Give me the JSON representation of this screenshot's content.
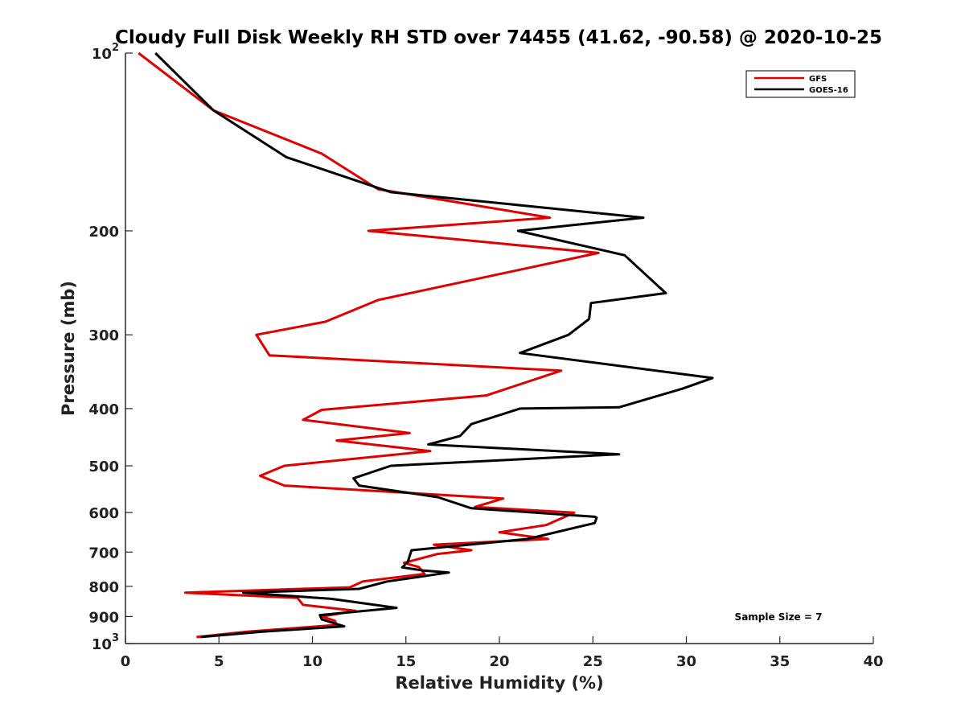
{
  "chart_data": {
    "type": "line",
    "title": "Cloudy Full Disk Weekly RH STD over 74455 (41.62, -90.58) @ 2020-10-25",
    "xlabel": "Relative Humidity (%)",
    "ylabel": "Pressure (mb)",
    "xlim": [
      0,
      40
    ],
    "ylim": [
      100,
      1000
    ],
    "y_scale": "log",
    "y_reversed": true,
    "x_ticks": [
      0,
      5,
      10,
      15,
      20,
      25,
      30,
      35,
      40
    ],
    "x_tick_labels": [
      "0",
      "5",
      "10",
      "15",
      "20",
      "25",
      "30",
      "35",
      "40"
    ],
    "y_ticks": [
      100,
      200,
      300,
      400,
      500,
      600,
      700,
      800,
      900,
      1000
    ],
    "y_tick_labels": [
      {
        "base": "10",
        "exp": "2"
      },
      {
        "base": "200",
        "exp": ""
      },
      {
        "base": "300",
        "exp": ""
      },
      {
        "base": "400",
        "exp": ""
      },
      {
        "base": "500",
        "exp": ""
      },
      {
        "base": "600",
        "exp": ""
      },
      {
        "base": "700",
        "exp": ""
      },
      {
        "base": "800",
        "exp": ""
      },
      {
        "base": "900",
        "exp": ""
      },
      {
        "base": "10",
        "exp": "3"
      }
    ],
    "grid": false,
    "legend_position": "top-right",
    "annotation": "Sample Size = 7",
    "series": [
      {
        "name": "GFS",
        "color": "#e00000",
        "points": [
          [
            0.7,
            100
          ],
          [
            4.7,
            125
          ],
          [
            10.5,
            148
          ],
          [
            13.5,
            170
          ],
          [
            22.7,
            190
          ],
          [
            13.0,
            200
          ],
          [
            25.3,
            218
          ],
          [
            13.5,
            262
          ],
          [
            10.7,
            285
          ],
          [
            7.0,
            300
          ],
          [
            7.7,
            325
          ],
          [
            23.3,
            345
          ],
          [
            19.3,
            380
          ],
          [
            10.5,
            402
          ],
          [
            9.5,
            418
          ],
          [
            15.2,
            440
          ],
          [
            11.3,
            453
          ],
          [
            16.3,
            472
          ],
          [
            8.5,
            500
          ],
          [
            7.2,
            520
          ],
          [
            8.5,
            540
          ],
          [
            20.2,
            568
          ],
          [
            18.7,
            587
          ],
          [
            24.0,
            600
          ],
          [
            22.5,
            630
          ],
          [
            20.0,
            648
          ],
          [
            22.6,
            665
          ],
          [
            16.5,
            680
          ],
          [
            18.5,
            695
          ],
          [
            16.7,
            705
          ],
          [
            14.9,
            730
          ],
          [
            15.7,
            742
          ],
          [
            16.0,
            762
          ],
          [
            12.7,
            785
          ],
          [
            12.0,
            803
          ],
          [
            3.2,
            820
          ],
          [
            9.2,
            837
          ],
          [
            9.5,
            860
          ],
          [
            12.3,
            880
          ],
          [
            10.5,
            900
          ],
          [
            11.2,
            915
          ],
          [
            11.3,
            930
          ],
          [
            6.5,
            955
          ],
          [
            3.8,
            975
          ]
        ]
      },
      {
        "name": "GOES-16",
        "color": "#000000",
        "points": [
          [
            1.6,
            100
          ],
          [
            4.7,
            125
          ],
          [
            8.6,
            150
          ],
          [
            14.2,
            172
          ],
          [
            27.7,
            190
          ],
          [
            21.0,
            200
          ],
          [
            26.7,
            220
          ],
          [
            28.9,
            255
          ],
          [
            24.9,
            265
          ],
          [
            24.8,
            282
          ],
          [
            23.7,
            300
          ],
          [
            21.1,
            322
          ],
          [
            31.4,
            355
          ],
          [
            29.8,
            370
          ],
          [
            26.4,
            398
          ],
          [
            21.1,
            400
          ],
          [
            18.5,
            425
          ],
          [
            17.9,
            445
          ],
          [
            16.2,
            460
          ],
          [
            26.4,
            478
          ],
          [
            14.2,
            500
          ],
          [
            12.2,
            525
          ],
          [
            12.5,
            540
          ],
          [
            16.7,
            565
          ],
          [
            18.5,
            590
          ],
          [
            25.1,
            610
          ],
          [
            25.2,
            612
          ],
          [
            25.1,
            625
          ],
          [
            21.5,
            665
          ],
          [
            15.3,
            695
          ],
          [
            15.1,
            727
          ],
          [
            14.8,
            743
          ],
          [
            15.9,
            752
          ],
          [
            17.3,
            758
          ],
          [
            14.0,
            785
          ],
          [
            12.5,
            808
          ],
          [
            6.3,
            820
          ],
          [
            11.0,
            840
          ],
          [
            14.5,
            870
          ],
          [
            10.4,
            895
          ],
          [
            10.5,
            910
          ],
          [
            11.7,
            935
          ],
          [
            7.3,
            955
          ],
          [
            4.0,
            975
          ]
        ]
      }
    ]
  }
}
